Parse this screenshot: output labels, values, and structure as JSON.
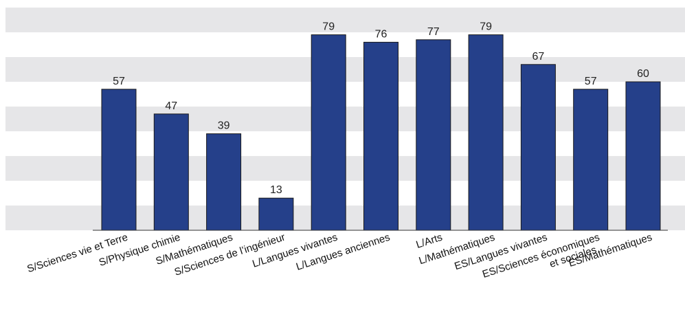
{
  "chart_data": {
    "type": "bar",
    "categories": [
      [
        "S/Sciences vie et Terre"
      ],
      [
        "S/Physique chimie"
      ],
      [
        "S/Mathématiques"
      ],
      [
        "S/Sciences de l’ingénieur"
      ],
      [
        "L/Langues vivantes"
      ],
      [
        "L/Langues anciennes"
      ],
      [
        "L/Arts"
      ],
      [
        "L/Mathématiques"
      ],
      [
        "ES/Langues vivantes"
      ],
      [
        "ES/Sciences économiques",
        "et sociales"
      ],
      [
        "ES/Mathématiques"
      ]
    ],
    "values": [
      57,
      47,
      39,
      13,
      79,
      76,
      77,
      79,
      67,
      57,
      60
    ],
    "ylim": [
      0,
      90
    ],
    "grid": "alternating-bands",
    "colors": {
      "bar": "#25408a",
      "band": "#e6e6e8",
      "axis": "#333333"
    }
  }
}
